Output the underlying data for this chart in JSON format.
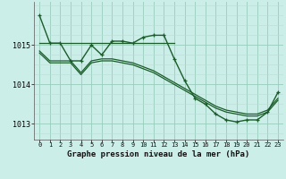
{
  "title": "Graphe pression niveau de la mer (hPa)",
  "background_color": "#cceee8",
  "grid_major_color": "#99ccbb",
  "grid_minor_color": "#bbddd4",
  "line_color": "#1a5c2a",
  "x_labels": [
    "0",
    "1",
    "2",
    "3",
    "4",
    "5",
    "6",
    "7",
    "8",
    "9",
    "10",
    "11",
    "12",
    "13",
    "14",
    "15",
    "16",
    "17",
    "18",
    "19",
    "20",
    "21",
    "22",
    "23"
  ],
  "ylim": [
    1012.6,
    1016.1
  ],
  "yticks": [
    1013,
    1014,
    1015
  ],
  "series": [
    {
      "x": [
        0,
        1,
        2,
        3,
        4,
        5,
        6,
        7,
        8,
        9,
        10,
        11,
        12,
        13,
        14,
        15,
        16,
        17,
        18,
        19,
        20,
        21,
        22,
        23
      ],
      "y": [
        1015.75,
        1015.05,
        1015.05,
        1014.6,
        1014.6,
        1015.0,
        1014.75,
        1015.1,
        1015.1,
        1015.05,
        1015.2,
        1015.25,
        1015.25,
        1014.65,
        1014.1,
        1013.65,
        1013.5,
        1013.25,
        1013.1,
        1013.05,
        1013.1,
        1013.1,
        1013.3,
        1013.8
      ],
      "marker": true,
      "linewidth": 1.0,
      "markersize": 3.5
    },
    {
      "x": [
        0,
        1,
        2,
        3,
        4,
        5,
        6,
        7,
        8,
        9,
        10,
        11,
        12,
        13
      ],
      "y": [
        1015.05,
        1015.05,
        1015.05,
        1015.05,
        1015.05,
        1015.05,
        1015.05,
        1015.05,
        1015.05,
        1015.05,
        1015.05,
        1015.05,
        1015.05,
        1015.05
      ],
      "marker": false,
      "linewidth": 0.9
    },
    {
      "x": [
        0,
        1,
        2,
        3,
        4,
        5,
        6,
        7,
        8,
        9,
        10,
        11,
        12,
        13,
        14,
        15,
        16,
        17,
        18,
        19,
        20,
        21,
        22,
        23
      ],
      "y": [
        1014.8,
        1014.55,
        1014.55,
        1014.55,
        1014.25,
        1014.55,
        1014.6,
        1014.6,
        1014.55,
        1014.5,
        1014.4,
        1014.3,
        1014.15,
        1014.0,
        1013.85,
        1013.7,
        1013.55,
        1013.4,
        1013.3,
        1013.25,
        1013.2,
        1013.2,
        1013.3,
        1013.6
      ],
      "marker": false,
      "linewidth": 0.9
    },
    {
      "x": [
        0,
        1,
        2,
        3,
        4,
        5,
        6,
        7,
        8,
        9,
        10,
        11,
        12,
        13,
        14,
        15,
        16,
        17,
        18,
        19,
        20,
        21,
        22,
        23
      ],
      "y": [
        1014.85,
        1014.6,
        1014.6,
        1014.6,
        1014.3,
        1014.6,
        1014.65,
        1014.65,
        1014.6,
        1014.55,
        1014.45,
        1014.35,
        1014.2,
        1014.05,
        1013.9,
        1013.75,
        1013.6,
        1013.45,
        1013.35,
        1013.3,
        1013.25,
        1013.25,
        1013.35,
        1013.65
      ],
      "marker": false,
      "linewidth": 0.9
    }
  ]
}
